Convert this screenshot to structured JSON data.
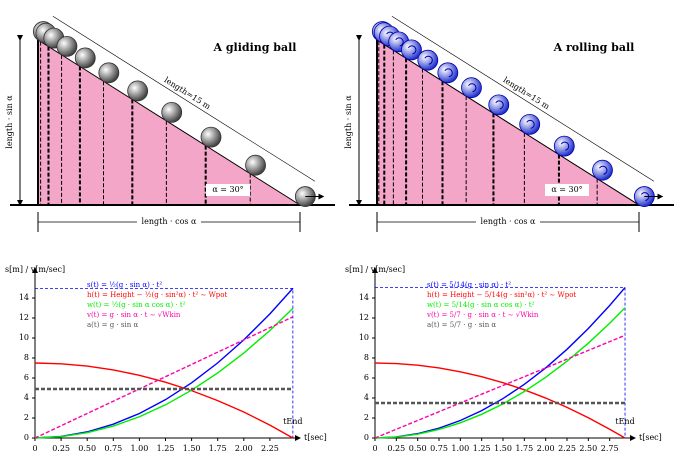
{
  "diagrams": [
    {
      "title": "A gliding ball",
      "length": "length=15 m",
      "vertical": "length · sin α",
      "horizontal": "length · cos α",
      "angle": "α = 30°"
    },
    {
      "title": "A rolling ball",
      "length": "length=15 m",
      "vertical": "length · sin α",
      "horizontal": "length · cos α",
      "angle": "α = 30°"
    }
  ],
  "chart_data": [
    {
      "type": "line",
      "y_label": "s[m] / v[m/sec]",
      "x_label": "t[sec]",
      "annotation": "tEnd",
      "x": [
        0,
        0.25,
        0.5,
        0.75,
        1,
        1.25,
        1.5,
        1.75,
        2,
        2.25,
        2.47
      ],
      "xlim": [
        0,
        2.5
      ],
      "ylim": [
        0,
        16
      ],
      "xticks": [
        0,
        {
          "value": 0.25,
          "label": "0.25"
        },
        {
          "value": 0.5,
          "label": "0.50"
        },
        {
          "value": 0.75,
          "label": "0.75"
        },
        {
          "value": 1,
          "label": "1.00"
        },
        {
          "value": 1.25,
          "label": "1.25"
        },
        {
          "value": 1.5,
          "label": "1.50"
        },
        {
          "value": 1.75,
          "label": "1.75"
        },
        {
          "value": 2,
          "label": "2.00"
        },
        {
          "value": 2.25,
          "label": "2.25"
        }
      ],
      "yticks": [
        0,
        2,
        4,
        6,
        8,
        10,
        12,
        14
      ],
      "series": [
        {
          "name": "s(t) = ½(g · sin α) · t²",
          "color": "#0000ff",
          "values": [
            0,
            0.153,
            0.613,
            1.38,
            2.453,
            3.832,
            5.518,
            7.511,
            9.81,
            12.416,
            14.96
          ]
        },
        {
          "name": "h(t) = Height − ½(g · sin²α) · t² ∼ Wpot",
          "color": "#ff0000",
          "values": [
            7.5,
            7.42,
            7.19,
            6.81,
            6.27,
            5.58,
            4.74,
            3.74,
            2.6,
            1.29,
            0
          ]
        },
        {
          "name": "w(t) = ½(g · sin α cos α) · t²",
          "color": "#00ee00",
          "values": [
            0,
            0.133,
            0.531,
            1.195,
            2.124,
            3.319,
            4.779,
            6.505,
            8.496,
            10.753,
            12.96
          ]
        },
        {
          "name": "v(t) = g · sin α · t ∼ √Wkin",
          "color": "#ff00aa",
          "dash": true,
          "values": [
            0,
            1.226,
            2.453,
            3.679,
            4.905,
            6.131,
            7.358,
            8.584,
            9.81,
            11.036,
            12.115
          ]
        },
        {
          "name": "a(t) = g · sin α",
          "color": "#555555",
          "dash": true,
          "values": [
            4.905,
            4.905,
            4.905,
            4.905,
            4.905,
            4.905,
            4.905,
            4.905,
            4.905,
            4.905,
            4.905
          ]
        }
      ]
    },
    {
      "type": "line",
      "y_label": "s[m] / v[m/sec]",
      "x_label": "t[sec]",
      "annotation": "tEnd",
      "x": [
        0,
        0.25,
        0.5,
        0.75,
        1,
        1.25,
        1.5,
        1.75,
        2,
        2.25,
        2.5,
        2.75,
        2.93
      ],
      "xlim": [
        0,
        3
      ],
      "ylim": [
        0,
        16
      ],
      "xticks": [
        0,
        {
          "value": 0.25,
          "label": "0.25"
        },
        {
          "value": 0.5,
          "label": "0.50"
        },
        {
          "value": 0.75,
          "label": "0.75"
        },
        {
          "value": 1,
          "label": "1.00"
        },
        {
          "value": 1.25,
          "label": "1.25"
        },
        {
          "value": 1.5,
          "label": "1.50"
        },
        {
          "value": 1.75,
          "label": "1.75"
        },
        {
          "value": 2,
          "label": "2.00"
        },
        {
          "value": 2.25,
          "label": "2.25"
        },
        {
          "value": 2.5,
          "label": "2.50"
        },
        {
          "value": 2.75,
          "label": "2.75"
        }
      ],
      "yticks": [
        0,
        2,
        4,
        6,
        8,
        10,
        12,
        14
      ],
      "series": [
        {
          "name": "s(t) = 5/14(g · sin α) · t²",
          "color": "#0000ff",
          "values": [
            0,
            0.11,
            0.438,
            0.986,
            1.752,
            2.738,
            3.942,
            5.366,
            7.008,
            8.87,
            10.95,
            13.25,
            15.04
          ]
        },
        {
          "name": "h(t) = Height − 5/14(g · sin²α) · t² ∼ Wpot",
          "color": "#ff0000",
          "values": [
            7.5,
            7.445,
            7.281,
            7.007,
            6.624,
            6.131,
            5.529,
            4.817,
            3.996,
            3.065,
            2.024,
            0.874,
            0
          ]
        },
        {
          "name": "w(t) = 5/14(g · sin α cos α) · t²",
          "color": "#00ee00",
          "values": [
            0,
            0.095,
            0.379,
            0.853,
            1.517,
            2.37,
            3.413,
            4.646,
            6.068,
            7.68,
            9.481,
            11.472,
            13.02
          ]
        },
        {
          "name": "v(t) = 5/7 · g · sin α · t ∼ √Wkin",
          "color": "#ff00aa",
          "dash": true,
          "values": [
            0,
            0.876,
            1.752,
            2.628,
            3.504,
            4.38,
            5.256,
            6.132,
            7.008,
            7.884,
            8.76,
            9.636,
            10.27
          ]
        },
        {
          "name": "a(t) = 5/7 · g · sin α",
          "color": "#555555",
          "dash": true,
          "values": [
            3.504,
            3.504,
            3.504,
            3.504,
            3.504,
            3.504,
            3.504,
            3.504,
            3.504,
            3.504,
            3.504,
            3.504,
            3.504
          ]
        }
      ]
    }
  ]
}
